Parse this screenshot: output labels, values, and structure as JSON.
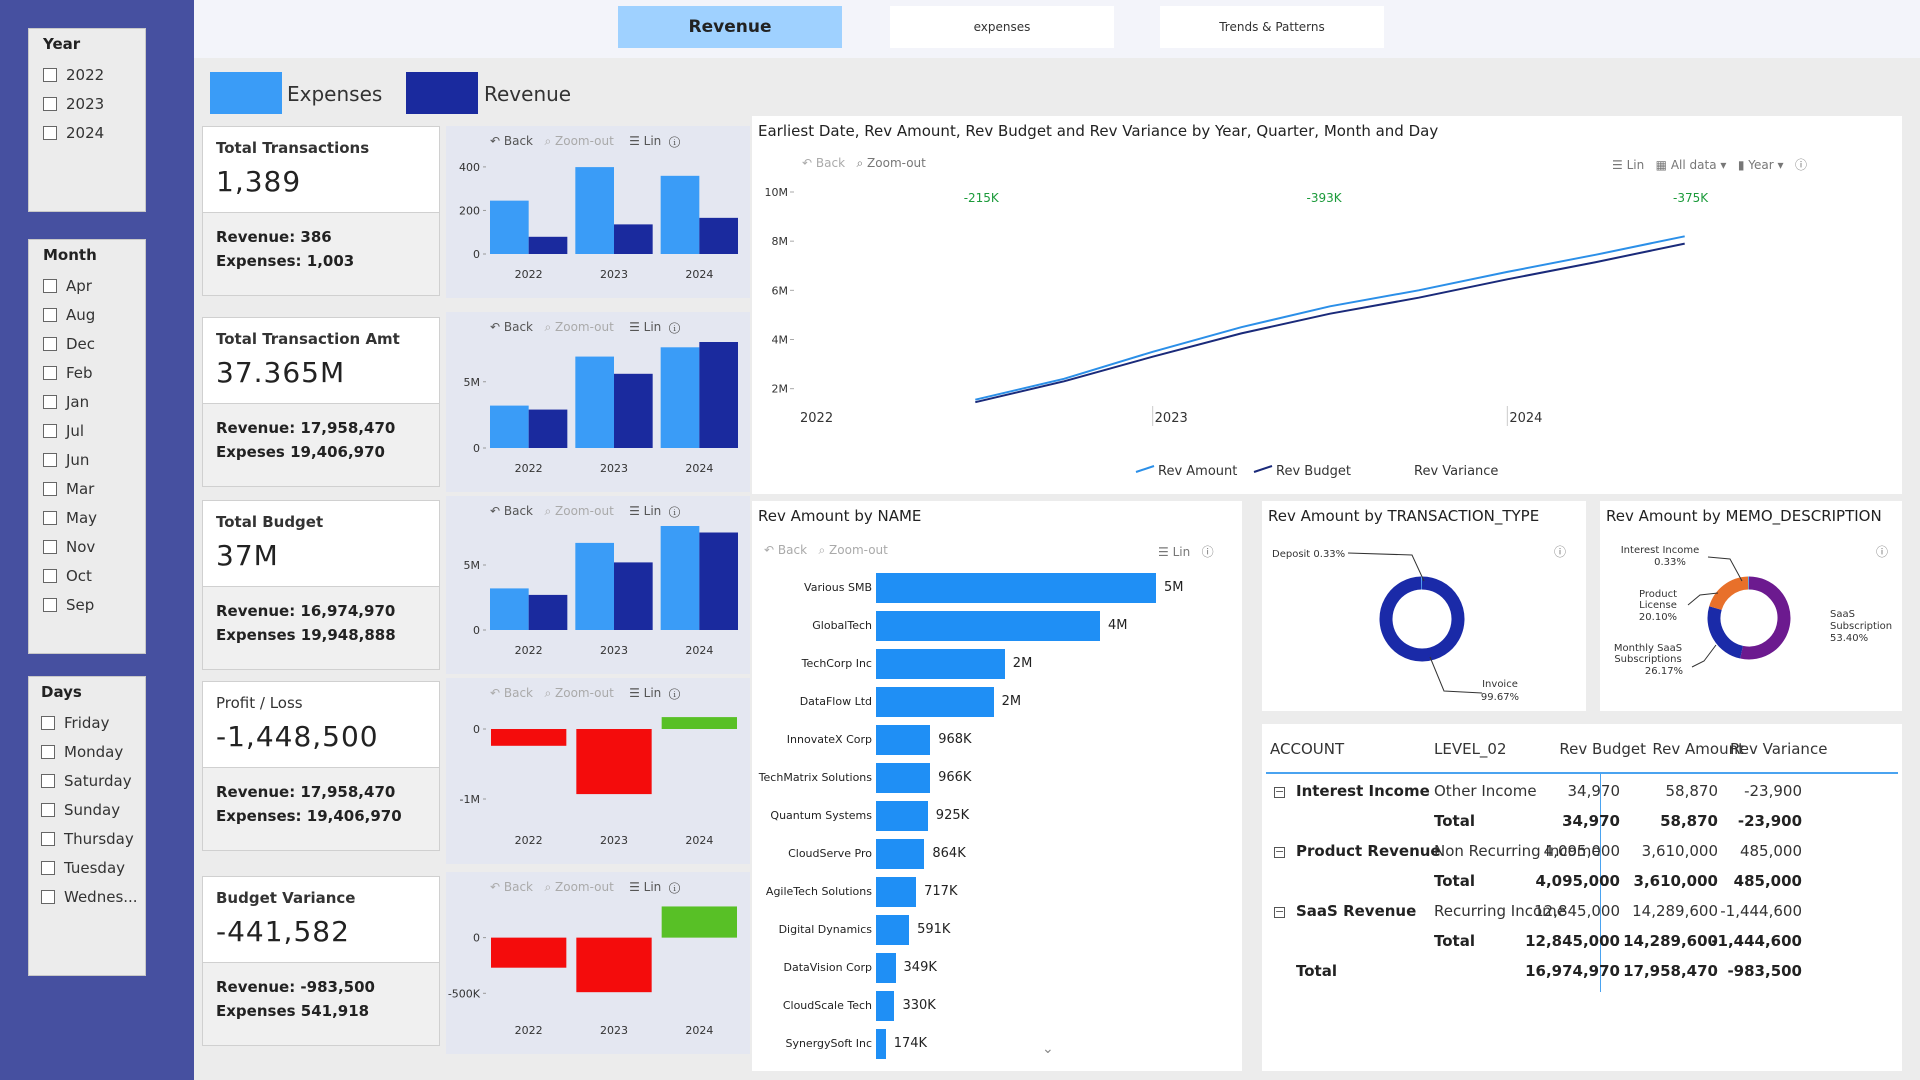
{
  "tabs": [
    {
      "label": "Revenue",
      "active": true
    },
    {
      "label": "expenses",
      "active": false
    },
    {
      "label": "Trends & Patterns",
      "active": false
    }
  ],
  "slicers": {
    "year": {
      "title": "Year",
      "items": [
        "2022",
        "2023",
        "2024"
      ]
    },
    "month": {
      "title": "Month",
      "items": [
        "Apr",
        "Aug",
        "Dec",
        "Feb",
        "Jan",
        "Jul",
        "Jun",
        "Mar",
        "May",
        "Nov",
        "Oct",
        "Sep"
      ]
    },
    "days": {
      "title": "Days",
      "items": [
        "Friday",
        "Monday",
        "Saturday",
        "Sunday",
        "Thursday",
        "Tuesday",
        "Wednes..."
      ]
    }
  },
  "legend": {
    "expenses": "Expenses",
    "revenue": "Revenue",
    "expenses_color": "#3a9cf7",
    "revenue_color": "#1a2a9e"
  },
  "toolbar": {
    "back": "Back",
    "zoom_out": "Zoom-out",
    "lin": "Lin",
    "all_data": "All data",
    "year": "Year"
  },
  "kpis": [
    {
      "title": "Total Transactions",
      "value": "1,389",
      "line1": "Revenue: 386",
      "line2": "Expenses: 1,003"
    },
    {
      "title": "Total Transaction Amt",
      "value": "37.365M",
      "line1": "Revenue: 17,958,470",
      "line2": "Expeses 19,406,970"
    },
    {
      "title": "Total Budget",
      "value": "37M",
      "line1": "Revenue: 16,974,970",
      "line2": "Expenses 19,948,888"
    },
    {
      "title": "Profit / Loss",
      "value": "-1,448,500",
      "line1": "Revenue: 17,958,470",
      "line2": "Expenses: 19,406,970"
    },
    {
      "title": "Budget Variance",
      "value": "-441,582",
      "line1": "Revenue: -983,500",
      "line2": "Expenses 541,918"
    }
  ],
  "mini_charts": [
    {
      "type": "bar",
      "categories": [
        "2022",
        "2023",
        "2024"
      ],
      "ticks": [
        "400",
        "200",
        "0"
      ],
      "tick_values": [
        400,
        200,
        0
      ],
      "ylim": [
        0,
        450
      ],
      "series": [
        {
          "name": "Expenses",
          "values": [
            245,
            399,
            359
          ]
        },
        {
          "name": "Revenue",
          "values": [
            79,
            136,
            166
          ]
        }
      ]
    },
    {
      "type": "bar",
      "categories": [
        "2022",
        "2023",
        "2024"
      ],
      "ticks": [
        "5M",
        "0"
      ],
      "tick_values": [
        5000000,
        0
      ],
      "ylim": [
        0,
        8000000
      ],
      "series": [
        {
          "name": "Expenses",
          "values": [
            3200000,
            6900000,
            7600000
          ]
        },
        {
          "name": "Revenue",
          "values": [
            2900000,
            5600000,
            8000000
          ]
        }
      ]
    },
    {
      "type": "bar",
      "categories": [
        "2022",
        "2023",
        "2024"
      ],
      "ticks": [
        "5M",
        "0"
      ],
      "tick_values": [
        5000000,
        0
      ],
      "ylim": [
        0,
        8000000
      ],
      "series": [
        {
          "name": "Expenses",
          "values": [
            3200000,
            6700000,
            8000000
          ]
        },
        {
          "name": "Revenue",
          "values": [
            2700000,
            5200000,
            7500000
          ]
        }
      ]
    },
    {
      "type": "bar",
      "categories": [
        "2022",
        "2023",
        "2024"
      ],
      "ticks": [
        "0",
        "-1M"
      ],
      "tick_values": [
        0,
        -1000000
      ],
      "ylim": [
        -1300000,
        300000
      ],
      "series": [
        {
          "name": "Profit / Loss",
          "values": [
            -240000,
            -930000,
            170000
          ]
        }
      ]
    },
    {
      "type": "bar",
      "categories": [
        "2022",
        "2023",
        "2024"
      ],
      "ticks": [
        "0",
        "-500K"
      ],
      "tick_values": [
        0,
        -500000
      ],
      "ylim": [
        -650000,
        320000
      ],
      "series": [
        {
          "name": "Budget Variance",
          "values": [
            -270000,
            -490000,
            280000
          ]
        }
      ]
    }
  ],
  "line_chart": {
    "title": "Earliest Date, Rev Amount, Rev Budget and Rev Variance by Year, Quarter, Month and Day",
    "y_ticks": [
      "10M",
      "8M",
      "6M",
      "4M",
      "2M"
    ],
    "y_tick_values": [
      10,
      8,
      6,
      4,
      2
    ],
    "x_labels": [
      "2022",
      "2023",
      "2024"
    ],
    "x_label_values": [
      0,
      12,
      24
    ],
    "variance_labels": [
      {
        "text": "-215K",
        "x": 6.2
      },
      {
        "text": "-393K",
        "x": 17.8
      },
      {
        "text": "-375K",
        "x": 30.2
      }
    ],
    "legend": [
      "Rev Amount",
      "Rev Budget",
      "Rev Variance"
    ],
    "rev_amount_color": "#2b8fe8",
    "rev_budget_color": "#1a2a7a",
    "variance_color": "#1b9a3a",
    "series": [
      {
        "name": "Rev Amount",
        "x": [
          6,
          9,
          12,
          15,
          18,
          21,
          24,
          27,
          30
        ],
        "y": [
          1.55,
          2.4,
          3.5,
          4.5,
          5.35,
          6.0,
          6.75,
          7.45,
          8.2
        ]
      },
      {
        "name": "Rev Budget",
        "x": [
          6,
          9,
          12,
          15,
          18,
          21,
          24,
          27,
          30
        ],
        "y": [
          1.45,
          2.3,
          3.3,
          4.25,
          5.05,
          5.7,
          6.45,
          7.15,
          7.9
        ]
      }
    ]
  },
  "bar_chart": {
    "title": "Rev Amount by NAME",
    "color": "#1f8ff5",
    "items": [
      {
        "name": "Various SMB",
        "value": 5000000,
        "label": "5M"
      },
      {
        "name": "GlobalTech",
        "value": 4000000,
        "label": "4M"
      },
      {
        "name": "TechCorp Inc",
        "value": 2300000,
        "label": "2M"
      },
      {
        "name": "DataFlow Ltd",
        "value": 2100000,
        "label": "2M"
      },
      {
        "name": "InnovateX Corp",
        "value": 968000,
        "label": "968K"
      },
      {
        "name": "TechMatrix Solutions",
        "value": 966000,
        "label": "966K"
      },
      {
        "name": "Quantum Systems",
        "value": 925000,
        "label": "925K"
      },
      {
        "name": "CloudServe Pro",
        "value": 864000,
        "label": "864K"
      },
      {
        "name": "AgileTech Solutions",
        "value": 717000,
        "label": "717K"
      },
      {
        "name": "Digital Dynamics",
        "value": 591000,
        "label": "591K"
      },
      {
        "name": "DataVision Corp",
        "value": 349000,
        "label": "349K"
      },
      {
        "name": "CloudScale Tech",
        "value": 330000,
        "label": "330K"
      },
      {
        "name": "SynergySoft Inc",
        "value": 174000,
        "label": "174K"
      }
    ]
  },
  "donut1": {
    "title": "Rev Amount by TRANSACTION_TYPE",
    "slices": [
      {
        "name": "Invoice",
        "pct": 99.67,
        "color": "#1a2aa8",
        "label_name": "Invoice",
        "label_pct": "99.67%"
      },
      {
        "name": "Deposit",
        "pct": 0.33,
        "color": "#3aa0f5",
        "label_name": "Deposit 0.33%"
      }
    ]
  },
  "donut2": {
    "title": "Rev Amount by MEMO_DESCRIPTION",
    "slices": [
      {
        "name": "SaaS Subscription",
        "pct": 53.4,
        "color": "#6c1a8f",
        "label_name": "SaaS Subscription",
        "label_pct": "53.40%"
      },
      {
        "name": "Monthly SaaS Subscriptions",
        "pct": 26.17,
        "color": "#1a2aa8",
        "label_name": "Monthly SaaS Subscriptions",
        "label_pct": "26.17%"
      },
      {
        "name": "Product License",
        "pct": 20.1,
        "color": "#e8702a",
        "label_name": "Product License",
        "label_pct": "20.10%"
      },
      {
        "name": "Interest Income",
        "pct": 0.33,
        "color": "#3aa0f5",
        "label_name": "Interest Income",
        "label_pct": "0.33%"
      }
    ]
  },
  "matrix": {
    "headers": [
      "ACCOUNT",
      "LEVEL_02",
      "Rev Budget",
      "Rev Amount",
      "Rev Variance"
    ],
    "groups": [
      {
        "account": "Interest Income",
        "rows": [
          [
            "Other Income",
            "34,970",
            "58,870",
            "-23,900"
          ],
          [
            "Total",
            "34,970",
            "58,870",
            "-23,900"
          ]
        ]
      },
      {
        "account": "Product Revenue",
        "rows": [
          [
            "Non Recurring Income",
            "4,095,000",
            "3,610,000",
            "485,000"
          ],
          [
            "Total",
            "4,095,000",
            "3,610,000",
            "485,000"
          ]
        ]
      },
      {
        "account": "SaaS Revenue",
        "rows": [
          [
            "Recurring Income",
            "12,845,000",
            "14,289,600",
            "-1,444,600"
          ],
          [
            "Total",
            "12,845,000",
            "14,289,600",
            "-1,444,600"
          ]
        ]
      }
    ],
    "grand_total": {
      "label": "Total",
      "budget": "16,974,970",
      "amount": "17,958,470",
      "variance": "-983,500"
    }
  }
}
